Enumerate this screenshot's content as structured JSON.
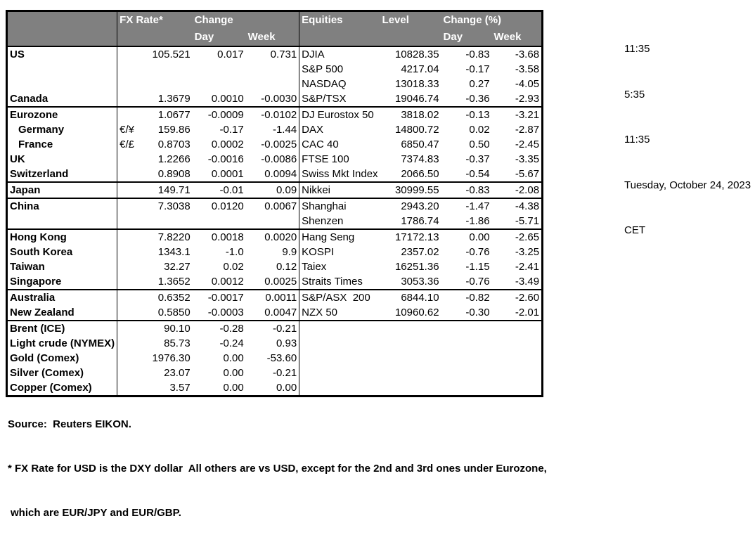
{
  "table": {
    "header": {
      "fx_rate": "FX Rate*",
      "change": "Change",
      "day": "Day",
      "week": "Week",
      "equities": "Equities",
      "level": "Level",
      "change_pct": "Change (%)"
    },
    "groups": [
      {
        "rows": [
          {
            "name": "US",
            "pair": "",
            "rate": "105.521",
            "day": "0.017",
            "week": "0.731",
            "eq": "DJIA",
            "level": "10828.35",
            "eqDay": "-0.83",
            "eqWeek": "-3.68"
          },
          {
            "name": "",
            "pair": "",
            "rate": "",
            "day": "",
            "week": "",
            "eq": "S&P 500",
            "level": "4217.04",
            "eqDay": "-0.17",
            "eqWeek": "-3.58"
          },
          {
            "name": "",
            "pair": "",
            "rate": "",
            "day": "",
            "week": "",
            "eq": "NASDAQ",
            "level": "13018.33",
            "eqDay": "0.27",
            "eqWeek": "-4.05"
          },
          {
            "name": "Canada",
            "pair": "",
            "rate": "1.3679",
            "day": "0.0010",
            "week": "-0.0030",
            "eq": "S&P/TSX",
            "level": "19046.74",
            "eqDay": "-0.36",
            "eqWeek": "-2.93"
          }
        ]
      },
      {
        "rows": [
          {
            "name": "Eurozone",
            "pair": "",
            "rate": "1.0677",
            "day": "-0.0009",
            "week": "-0.0102",
            "eq": "DJ Eurostox 50",
            "level": "3818.02",
            "eqDay": "-0.13",
            "eqWeek": "-3.21"
          },
          {
            "name": "Germany",
            "indent": true,
            "pair": "€/¥",
            "rate": "159.86",
            "day": "-0.17",
            "week": "-1.44",
            "eq": "DAX",
            "level": "14800.72",
            "eqDay": "0.02",
            "eqWeek": "-2.87"
          },
          {
            "name": "France",
            "indent": true,
            "pair": "€/£",
            "rate": "0.8703",
            "day": "0.0002",
            "week": "-0.0025",
            "eq": "CAC 40",
            "level": "6850.47",
            "eqDay": "0.50",
            "eqWeek": "-2.45"
          },
          {
            "name": "UK",
            "pair": "",
            "rate": "1.2266",
            "day": "-0.0016",
            "week": "-0.0086",
            "eq": "FTSE 100",
            "level": "7374.83",
            "eqDay": "-0.37",
            "eqWeek": "-3.35"
          },
          {
            "name": "Switzerland",
            "pair": "",
            "rate": "0.8908",
            "day": "0.0001",
            "week": "0.0094",
            "eq": "Swiss Mkt Index",
            "level": "2066.50",
            "eqDay": "-0.54",
            "eqWeek": "-5.67"
          }
        ]
      },
      {
        "rows": [
          {
            "name": "Japan",
            "pair": "",
            "rate": "149.71",
            "day": "-0.01",
            "week": "0.09",
            "eq": "Nikkei",
            "level": "30999.55",
            "eqDay": "-0.83",
            "eqWeek": "-2.08"
          }
        ]
      },
      {
        "rows": [
          {
            "name": "China",
            "pair": "",
            "rate": "7.3038",
            "day": "0.0120",
            "week": "0.0067",
            "eq": "Shanghai",
            "level": "2943.20",
            "eqDay": "-1.47",
            "eqWeek": "-4.38"
          },
          {
            "name": "",
            "pair": "",
            "rate": "",
            "day": "",
            "week": "",
            "eq": "Shenzen",
            "level": "1786.74",
            "eqDay": "-1.86",
            "eqWeek": "-5.71"
          }
        ]
      },
      {
        "rows": [
          {
            "name": "Hong Kong",
            "pair": "",
            "rate": "7.8220",
            "day": "0.0018",
            "week": "0.0020",
            "eq": "Hang Seng",
            "level": "17172.13",
            "eqDay": "0.00",
            "eqWeek": "-2.65"
          },
          {
            "name": "South Korea",
            "pair": "",
            "rate": "1343.1",
            "day": "-1.0",
            "week": "9.9",
            "eq": "KOSPI",
            "level": "2357.02",
            "eqDay": "-0.76",
            "eqWeek": "-3.25"
          },
          {
            "name": "Taiwan",
            "pair": "",
            "rate": "32.27",
            "day": "0.02",
            "week": "0.12",
            "eq": "Taiex",
            "level": "16251.36",
            "eqDay": "-1.15",
            "eqWeek": "-2.41"
          },
          {
            "name": "Singapore",
            "pair": "",
            "rate": "1.3652",
            "day": "0.0012",
            "week": "0.0025",
            "eq": "Straits Times",
            "level": "3053.36",
            "eqDay": "-0.76",
            "eqWeek": "-3.49"
          }
        ]
      },
      {
        "rows": [
          {
            "name": "Australia",
            "pair": "",
            "rate": "0.6352",
            "day": "-0.0017",
            "week": "0.0011",
            "eq": "S&P/ASX  200",
            "level": "6844.10",
            "eqDay": "-0.82",
            "eqWeek": "-2.60"
          },
          {
            "name": "New Zealand",
            "pair": "",
            "rate": "0.5850",
            "day": "-0.0003",
            "week": "0.0047",
            "eq": "NZX 50",
            "level": "10960.62",
            "eqDay": "-0.30",
            "eqWeek": "-2.01"
          }
        ]
      },
      {
        "rows": [
          {
            "name": "Brent (ICE)",
            "pair": "",
            "rate": "90.10",
            "day": "-0.28",
            "week": "-0.21",
            "eq": "",
            "level": "",
            "eqDay": "",
            "eqWeek": ""
          },
          {
            "name": "Light crude (NYMEX)",
            "pair": "",
            "rate": "85.73",
            "day": "-0.24",
            "week": "0.93",
            "eq": "",
            "level": "",
            "eqDay": "",
            "eqWeek": ""
          },
          {
            "name": "Gold (Comex)",
            "pair": "",
            "rate": "1976.30",
            "day": "0.00",
            "week": "-53.60",
            "eq": "",
            "level": "",
            "eqDay": "",
            "eqWeek": ""
          },
          {
            "name": "Silver (Comex)",
            "pair": "",
            "rate": "23.07",
            "day": "0.00",
            "week": "-0.21",
            "eq": "",
            "level": "",
            "eqDay": "",
            "eqWeek": ""
          },
          {
            "name": "Copper (Comex)",
            "pair": "",
            "rate": "3.57",
            "day": "0.00",
            "week": "0.00",
            "eq": "",
            "level": "",
            "eqDay": "",
            "eqWeek": ""
          }
        ]
      }
    ]
  },
  "footer": {
    "source": "Source:  Reuters EIKON.",
    "footnote_line1": "* FX Rate for USD is the DXY dollar  All others are vs USD, except for the 2nd and 3rd ones under Eurozone,",
    "footnote_line2": "which are EUR/JPY and EUR/GBP."
  },
  "timestamps": {
    "line1": "11:35",
    "line2": "5:35",
    "line3": "11:35",
    "line4": "Tuesday, October 24, 2023",
    "line5": "CET"
  },
  "colors": {
    "header_bg": "#808080",
    "header_text": "#ffffff",
    "border": "#000000"
  }
}
